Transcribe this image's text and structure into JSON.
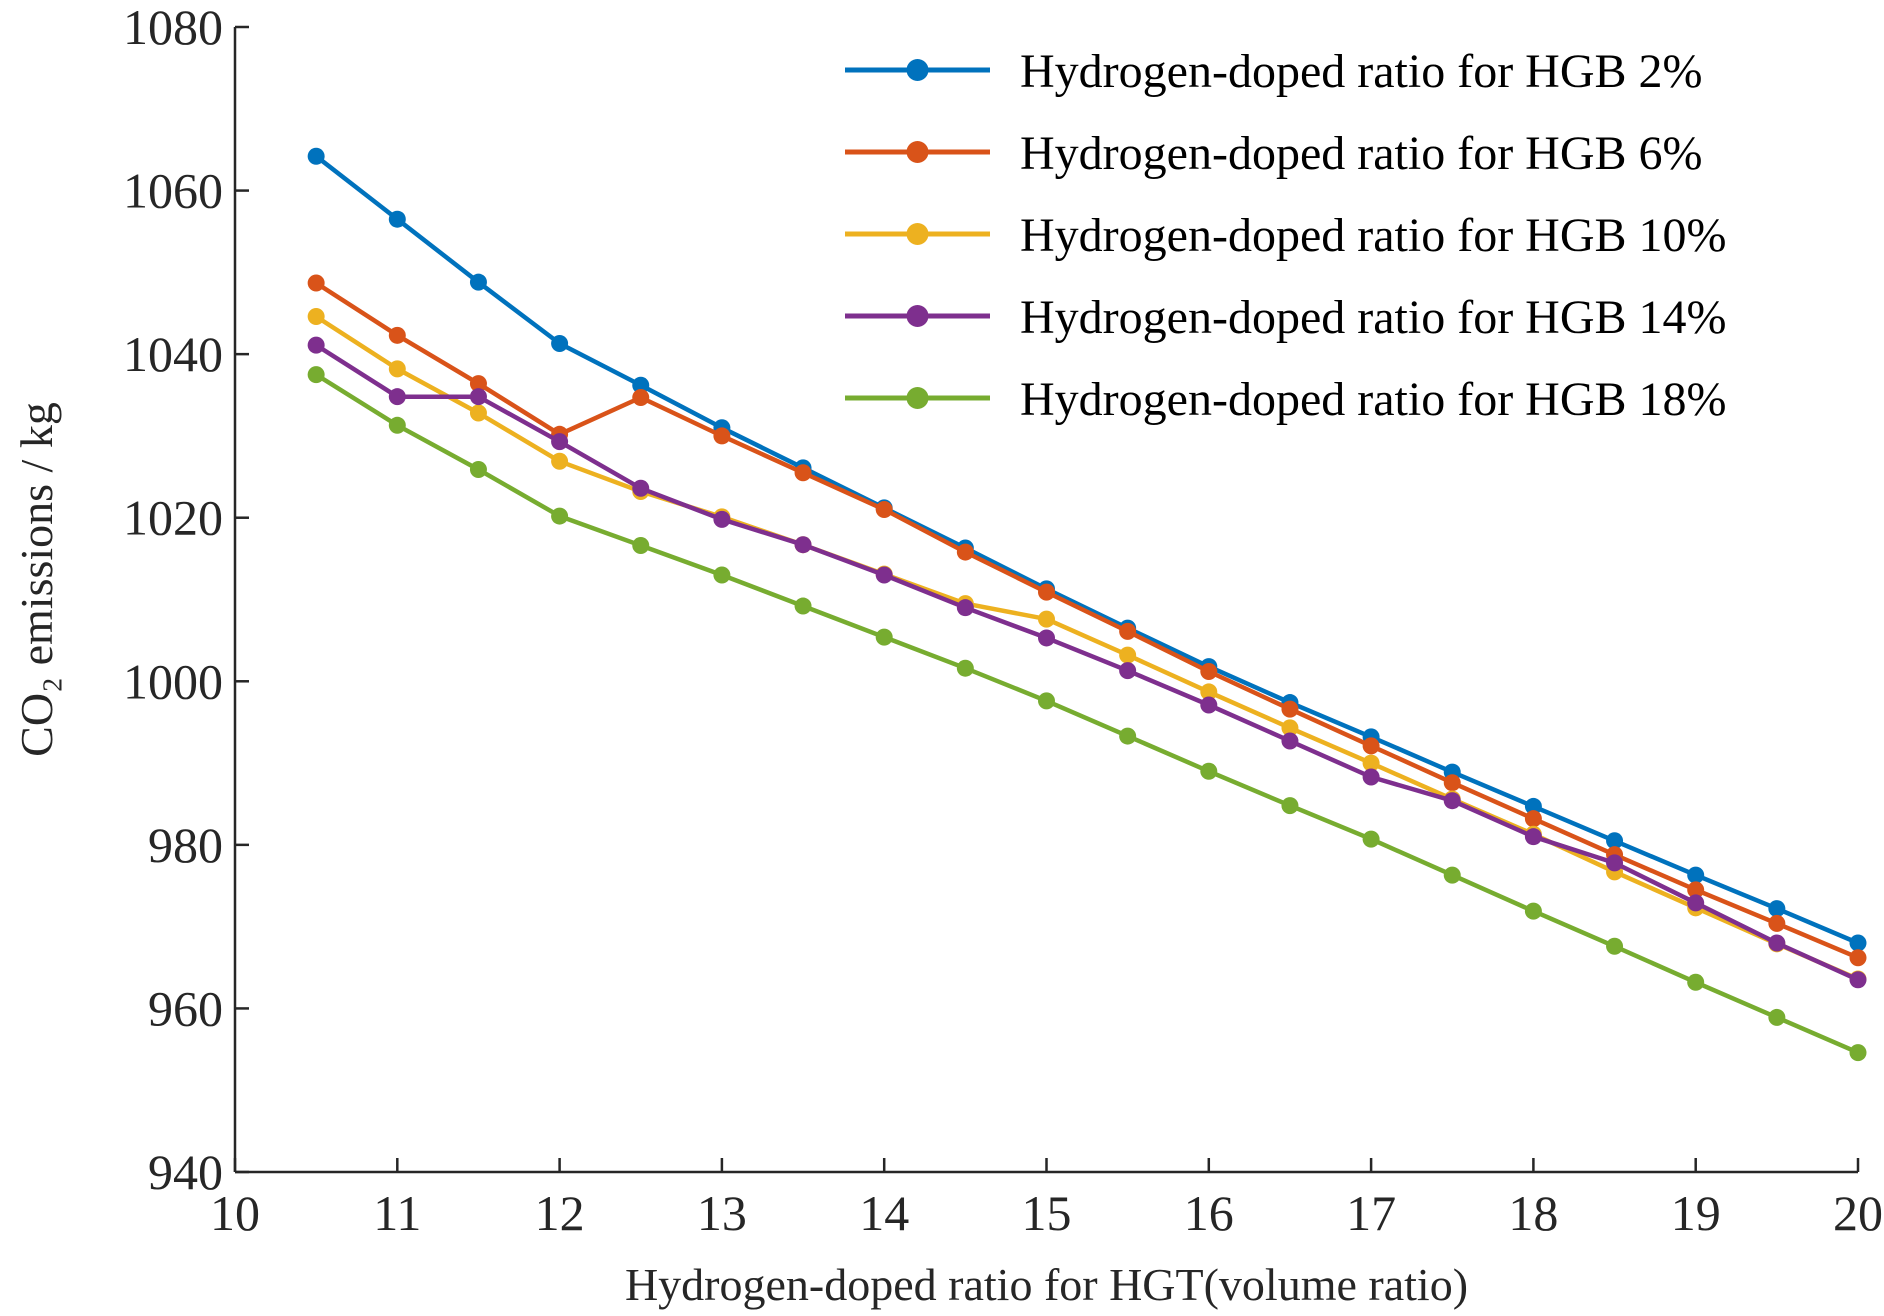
{
  "chart_data": {
    "type": "line",
    "title": "",
    "xlabel": "Hydrogen-doped ratio for HGT(volume ratio)",
    "ylabel": "CO₂ emissions / kg",
    "xlim": [
      10,
      20
    ],
    "ylim": [
      940,
      1080
    ],
    "xticks": [
      10,
      11,
      12,
      13,
      14,
      15,
      16,
      17,
      18,
      19,
      20
    ],
    "yticks": [
      940,
      960,
      980,
      1000,
      1020,
      1040,
      1060,
      1080
    ],
    "legend_position": "top-right",
    "x": [
      10.5,
      11,
      11.5,
      12,
      12.5,
      13,
      13.5,
      14,
      14.5,
      15,
      15.5,
      16,
      16.5,
      17,
      17.5,
      18,
      18.5,
      19,
      19.5,
      20
    ],
    "series": [
      {
        "name": "Hydrogen-doped ratio for HGB 2%",
        "color": "#0072BD",
        "values": [
          1064.2,
          1056.5,
          1048.8,
          1041.3,
          1036.2,
          1031.0,
          1026.1,
          1021.2,
          1016.3,
          1011.3,
          1006.5,
          1001.8,
          997.4,
          993.2,
          988.9,
          984.7,
          980.5,
          976.3,
          972.2,
          968.0
        ]
      },
      {
        "name": "Hydrogen-doped ratio for HGB 6%",
        "color": "#D95319",
        "values": [
          1048.7,
          1042.3,
          1036.4,
          1030.2,
          1034.7,
          1030.0,
          1025.5,
          1021.0,
          1015.8,
          1010.9,
          1006.1,
          1001.2,
          996.6,
          992.1,
          987.6,
          983.2,
          978.8,
          974.5,
          970.4,
          966.2
        ]
      },
      {
        "name": "Hydrogen-doped ratio for HGB 10%",
        "color": "#EDB120",
        "values": [
          1044.6,
          1038.2,
          1032.8,
          1026.9,
          1023.2,
          1020.1,
          1016.7,
          1013.1,
          1009.5,
          1007.6,
          1003.2,
          998.7,
          994.3,
          990.0,
          985.6,
          981.3,
          976.7,
          972.3,
          967.9,
          963.6
        ]
      },
      {
        "name": "Hydrogen-doped ratio for HGB 14%",
        "color": "#7E2F8E",
        "values": [
          1041.1,
          1034.8,
          1034.8,
          1029.3,
          1023.6,
          1019.8,
          1016.7,
          1013.0,
          1009.0,
          1005.3,
          1001.3,
          997.1,
          992.7,
          988.3,
          985.4,
          981.0,
          977.8,
          972.9,
          968.0,
          963.5
        ]
      },
      {
        "name": "Hydrogen-doped ratio for HGB 18%",
        "color": "#77AC30",
        "values": [
          1037.5,
          1031.3,
          1025.9,
          1020.2,
          1016.6,
          1013.0,
          1009.2,
          1005.4,
          1001.6,
          997.6,
          993.3,
          989.0,
          984.8,
          980.7,
          976.3,
          971.9,
          967.6,
          963.2,
          958.9,
          954.6
        ]
      }
    ]
  }
}
